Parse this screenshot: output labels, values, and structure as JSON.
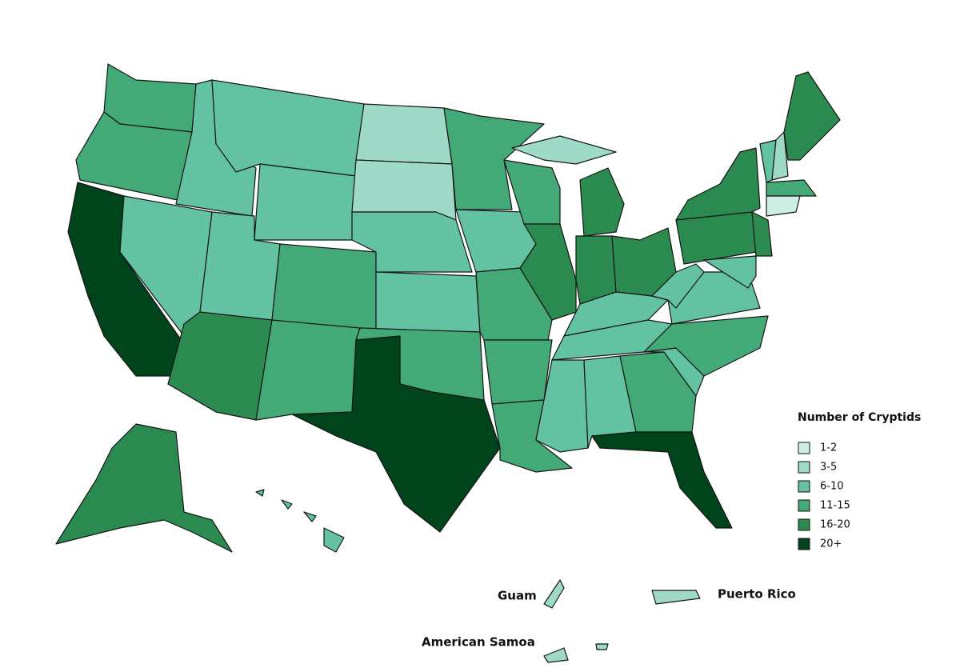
{
  "legend": {
    "title": "Number of Cryptids",
    "items": [
      {
        "label": "1-2",
        "color": "#cdeee5"
      },
      {
        "label": "3-5",
        "color": "#9fd9c7"
      },
      {
        "label": "6-10",
        "color": "#62c2a2"
      },
      {
        "label": "11-15",
        "color": "#43aa77"
      },
      {
        "label": "16-20",
        "color": "#2a8a4f"
      },
      {
        "label": "20+",
        "color": "#00441b"
      }
    ]
  },
  "territories": [
    "Guam",
    "Puerto Rico",
    "American Samoa"
  ]
}
